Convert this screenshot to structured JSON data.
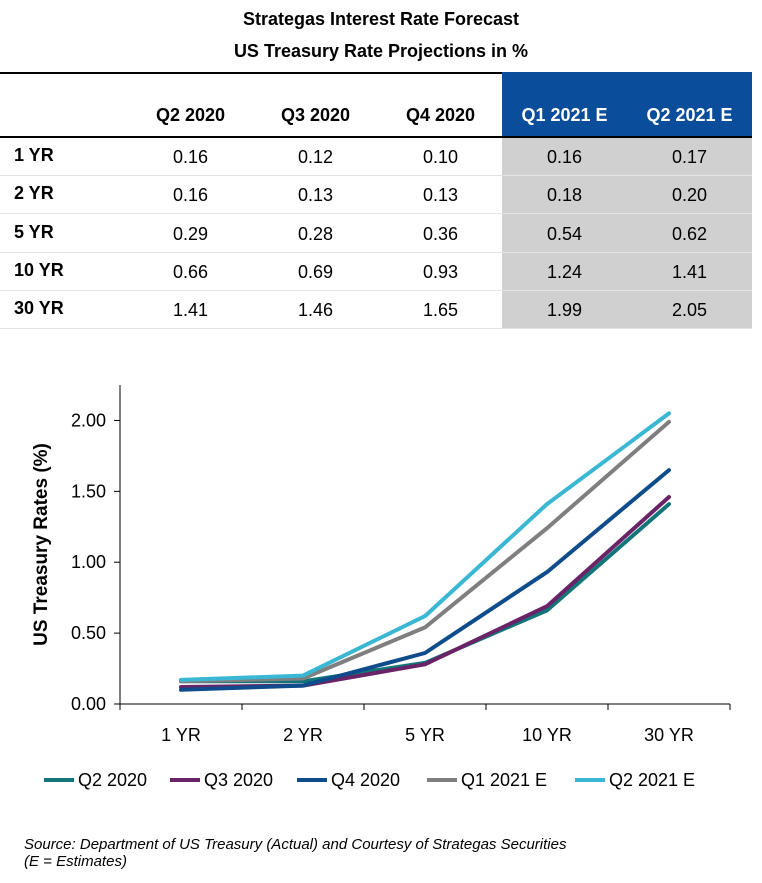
{
  "title": "Strategas Interest Rate Forecast",
  "subtitle": "US Treasury Rate Projections in %",
  "table": {
    "columns": [
      "Q2 2020",
      "Q3 2020",
      "Q4 2020",
      "Q1 2021 E",
      "Q2 2021 E"
    ],
    "rows": [
      {
        "label": "1 YR",
        "values": [
          "0.16",
          "0.12",
          "0.10",
          "0.16",
          "0.17"
        ]
      },
      {
        "label": "2 YR",
        "values": [
          "0.16",
          "0.13",
          "0.13",
          "0.18",
          "0.20"
        ]
      },
      {
        "label": "5 YR",
        "values": [
          "0.29",
          "0.28",
          "0.36",
          "0.54",
          "0.62"
        ]
      },
      {
        "label": "10 YR",
        "values": [
          "0.66",
          "0.69",
          "0.93",
          "1.24",
          "1.41"
        ]
      },
      {
        "label": "30 YR",
        "values": [
          "1.41",
          "1.46",
          "1.65",
          "1.99",
          "2.05"
        ]
      }
    ],
    "header_highlight_color": "#0a4d9a",
    "estimate_fill_color": "#d0d0d0"
  },
  "chart_data": {
    "type": "line",
    "categories": [
      "1 YR",
      "2 YR",
      "5 YR",
      "10 YR",
      "30 YR"
    ],
    "ylabel": "US Treasury Rates (%)",
    "xlabel": "",
    "ylim": [
      0,
      2.25
    ],
    "yticks": [
      "0.00",
      "0.50",
      "1.00",
      "1.50",
      "2.00"
    ],
    "grid": false,
    "legend_position": "bottom",
    "series": [
      {
        "name": "Q2 2020",
        "color": "#11757a",
        "values": [
          0.16,
          0.16,
          0.29,
          0.66,
          1.41
        ]
      },
      {
        "name": "Q3 2020",
        "color": "#6b2367",
        "values": [
          0.12,
          0.13,
          0.28,
          0.69,
          1.46
        ]
      },
      {
        "name": "Q4 2020",
        "color": "#0e4c8c",
        "values": [
          0.1,
          0.13,
          0.36,
          0.93,
          1.65
        ]
      },
      {
        "name": "Q1 2021 E",
        "color": "#7f7f7f",
        "values": [
          0.16,
          0.18,
          0.54,
          1.24,
          1.99
        ]
      },
      {
        "name": "Q2 2021 E",
        "color": "#3ab7d3",
        "values": [
          0.17,
          0.2,
          0.62,
          1.41,
          2.05
        ]
      }
    ]
  },
  "source_line1": "Source: Department of US Treasury (Actual) and Courtesy of Strategas Securities",
  "source_line2": "(E = Estimates)"
}
